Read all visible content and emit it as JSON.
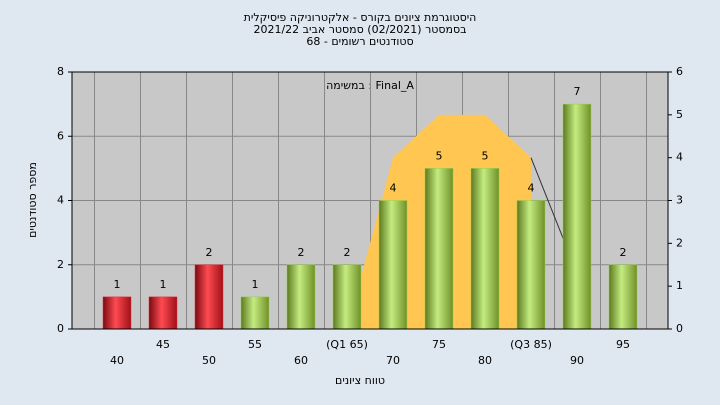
{
  "chart_data": {
    "type": "bar",
    "title": [
      "היסטוגרמת ציונים בקורס - אלקטרוניקה פיסיקלית",
      "בסמסטר  (02/2021)  סמסטר אביב 2021/22",
      "סטודנטים רשומים - 68"
    ],
    "annotation": "Final_A : במשימה",
    "x_label": "טווח ציונים",
    "y_label": "מספר סטודנטים",
    "categories": [
      "40",
      "45",
      "50",
      "55",
      "60",
      "(Q1 65)",
      "70",
      "75",
      "80",
      "(Q3 85)",
      "90",
      "95"
    ],
    "series": [
      {
        "type": "bar",
        "values": [
          1,
          1,
          2,
          1,
          2,
          2,
          4,
          5,
          5,
          4,
          7,
          2
        ],
        "colors": [
          "#e0303a",
          "#e0303a",
          "#e0303a",
          "#9acd4a",
          "#9acd4a",
          "#9acd4a",
          "#9acd4a",
          "#9acd4a",
          "#9acd4a",
          "#9acd4a",
          "#9acd4a",
          "#9acd4a"
        ]
      },
      {
        "type": "area",
        "axis": "y2",
        "color": "#ffc651",
        "values": [
          null,
          null,
          null,
          null,
          null,
          0,
          4,
          5,
          5,
          4,
          null,
          null
        ]
      },
      {
        "type": "line",
        "axis": "y2",
        "color": "#333333",
        "values": [
          null,
          null,
          null,
          null,
          null,
          null,
          null,
          null,
          null,
          4,
          1.3,
          null
        ]
      }
    ],
    "ylim": [
      0,
      8
    ],
    "yticks": [
      0,
      2,
      4,
      6,
      8
    ],
    "y2lim": [
      0,
      6
    ],
    "y2ticks": [
      0,
      1,
      2,
      3,
      4,
      5,
      6
    ],
    "grid": true
  }
}
